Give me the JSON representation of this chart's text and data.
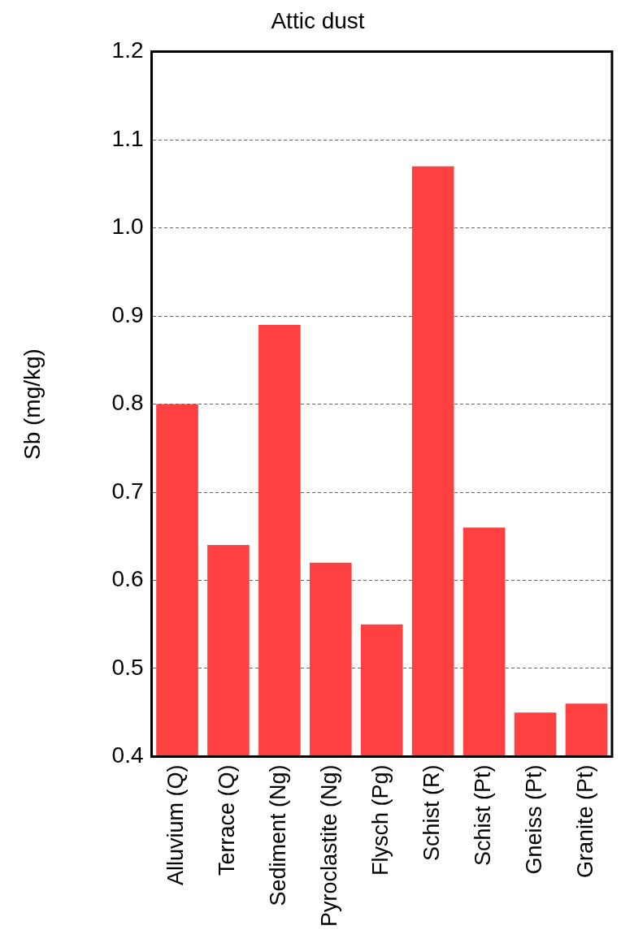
{
  "chart_data": {
    "type": "bar",
    "title": "Attic dust",
    "ylabel": "Sb (mg/kg)",
    "categories": [
      "Alluvium (Q)",
      "Terrace (Q)",
      "Sediment (Ng)",
      "Pyroclastite (Ng)",
      "Flysch (Pg)",
      "Schist (R)",
      "Schist (Pt)",
      "Gneiss (Pt)",
      "Granite (Pt)"
    ],
    "values": [
      0.8,
      0.64,
      0.89,
      0.62,
      0.55,
      1.07,
      0.66,
      0.45,
      0.46
    ],
    "color": "#ff4040",
    "ylim": [
      0.4,
      1.2
    ],
    "yticks": [
      0.4,
      0.5,
      0.6,
      0.7,
      0.8,
      0.9,
      {
        "value": 1,
        "label": "1.0"
      },
      1.1,
      1.2
    ],
    "grid": "y",
    "legend": false
  }
}
